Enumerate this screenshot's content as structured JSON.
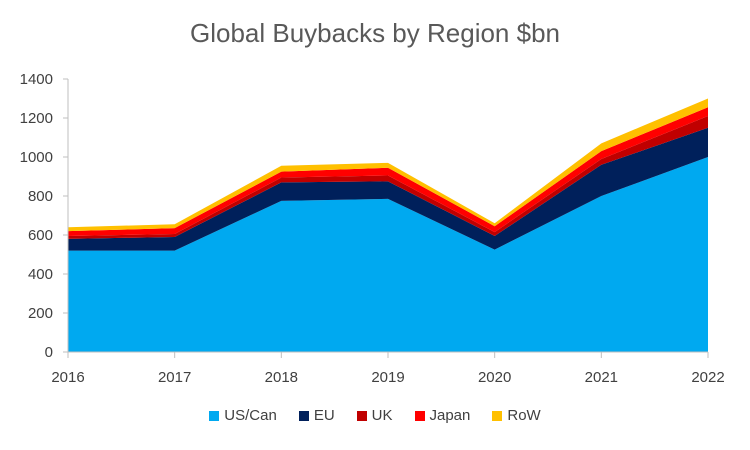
{
  "chart_data": {
    "type": "area",
    "stacked": true,
    "title": "Global Buybacks by Region $bn",
    "xlabel": "",
    "ylabel": "",
    "x": [
      "2016",
      "2017",
      "2018",
      "2019",
      "2020",
      "2021",
      "2022"
    ],
    "ylim": [
      0,
      1400
    ],
    "yticks": [
      0,
      200,
      400,
      600,
      800,
      1000,
      1200,
      1400
    ],
    "grid": false,
    "legend_position": "bottom",
    "series": [
      {
        "name": "US/Can",
        "color": "#00A9F0",
        "values": [
          520,
          520,
          775,
          785,
          525,
          800,
          1000
        ]
      },
      {
        "name": "EU",
        "color": "#00205B",
        "values": [
          60,
          70,
          95,
          90,
          70,
          160,
          150
        ]
      },
      {
        "name": "UK",
        "color": "#C00000",
        "values": [
          15,
          15,
          25,
          30,
          20,
          30,
          60
        ]
      },
      {
        "name": "Japan",
        "color": "#FF0000",
        "values": [
          25,
          30,
          30,
          40,
          30,
          40,
          45
        ]
      },
      {
        "name": "RoW",
        "color": "#FFC000",
        "values": [
          20,
          20,
          30,
          25,
          15,
          40,
          45
        ]
      }
    ]
  }
}
